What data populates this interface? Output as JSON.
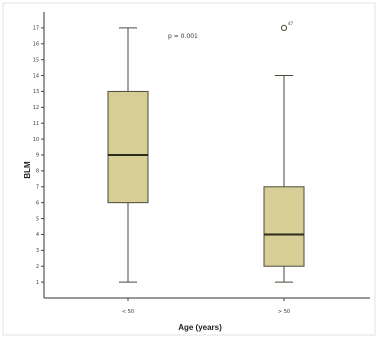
{
  "chart_data": {
    "type": "boxplot",
    "title": "",
    "xlabel": "Age (years)",
    "ylabel": "BLM",
    "ylim": [
      0,
      18
    ],
    "yticks": [
      1,
      2,
      3,
      4,
      5,
      6,
      7,
      8,
      9,
      10,
      11,
      12,
      13,
      14,
      15,
      16,
      17
    ],
    "categories": [
      "< 50",
      "> 50"
    ],
    "boxes": [
      {
        "category": "< 50",
        "min": 1,
        "q1": 6,
        "median": 9,
        "q3": 13,
        "max": 17
      },
      {
        "category": "> 50",
        "min": 1,
        "q1": 2,
        "median": 4,
        "q3": 7,
        "max": 14,
        "outliers": [
          {
            "value": 17,
            "label": "47"
          }
        ]
      }
    ],
    "annotation": "p = 0.001",
    "colors": {
      "box_fill": "#d7ce96",
      "box_stroke": "#4a4a3a",
      "median": "#2a2a1e",
      "frame": "#e3e3e3",
      "background": "#ffffff"
    },
    "grid": false
  }
}
